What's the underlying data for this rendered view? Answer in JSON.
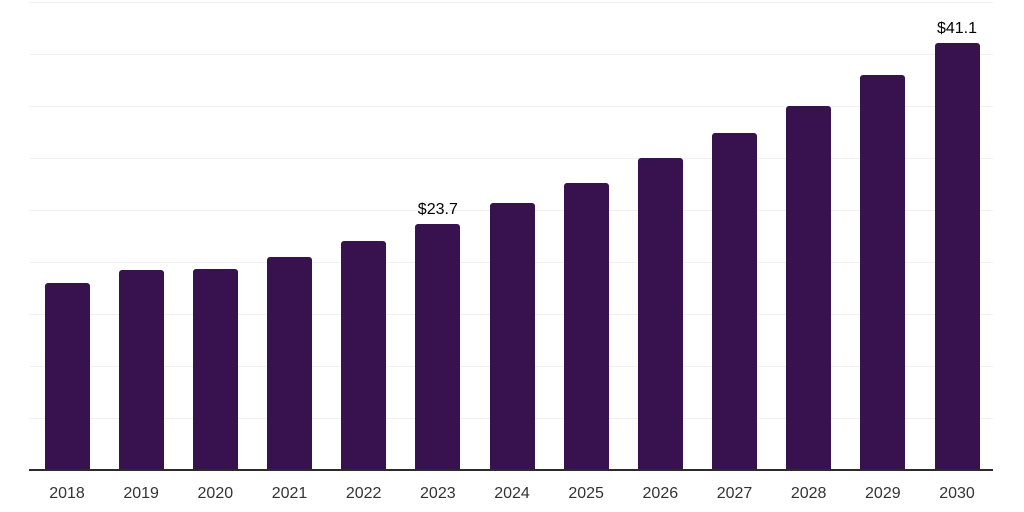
{
  "chart_data": {
    "type": "bar",
    "categories": [
      "2018",
      "2019",
      "2020",
      "2021",
      "2022",
      "2023",
      "2024",
      "2025",
      "2026",
      "2027",
      "2028",
      "2029",
      "2030"
    ],
    "values": [
      18.0,
      19.2,
      19.3,
      20.5,
      22.0,
      23.7,
      25.7,
      27.6,
      30.0,
      32.4,
      35.0,
      38.0,
      41.1
    ],
    "series": [
      {
        "name": "value",
        "values": [
          18.0,
          19.2,
          19.3,
          20.5,
          22.0,
          23.7,
          25.7,
          27.6,
          30.0,
          32.4,
          35.0,
          38.0,
          41.1
        ]
      }
    ],
    "data_labels": {
      "2023": "$23.7",
      "2030": "$41.1"
    },
    "title": "",
    "xlabel": "",
    "ylabel": "",
    "ylim": [
      0,
      45
    ],
    "gridline_step": 5,
    "grid": "horizontal",
    "legend": "none"
  },
  "colors": {
    "background": "#ffffff",
    "bar": "#37124E",
    "gridline": "#f0f0f2",
    "axis_line": "#2b2b2b",
    "tick_label": "#333333",
    "data_label": "#000000"
  }
}
